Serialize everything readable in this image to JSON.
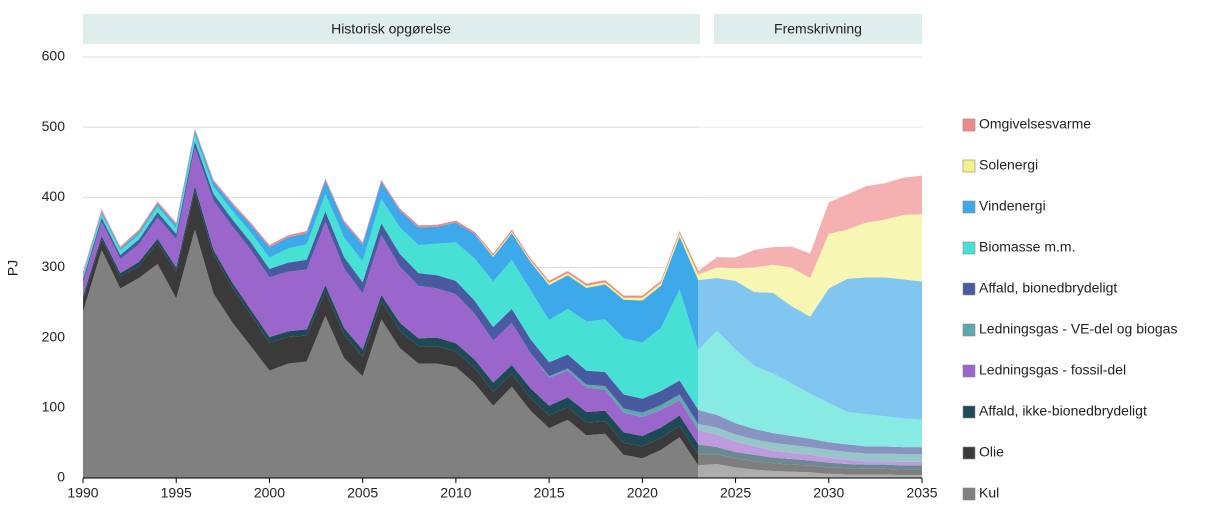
{
  "chart_data": {
    "type": "stacked-area",
    "headers": [
      "Historisk opgørelse",
      "Fremskrivning"
    ],
    "y_label": "PJ",
    "x": [
      1990,
      1991,
      1992,
      1993,
      1994,
      1995,
      1996,
      1997,
      1998,
      1999,
      2000,
      2001,
      2002,
      2003,
      2004,
      2005,
      2006,
      2007,
      2008,
      2009,
      2010,
      2011,
      2012,
      2013,
      2014,
      2015,
      2016,
      2017,
      2018,
      2019,
      2020,
      2021,
      2022,
      2023,
      2024,
      2025,
      2026,
      2027,
      2028,
      2029,
      2030,
      2031,
      2032,
      2033,
      2034,
      2035
    ],
    "xlim": [
      1990,
      2035
    ],
    "xticks": [
      1990,
      1995,
      2000,
      2005,
      2010,
      2015,
      2020,
      2025,
      2030,
      2035
    ],
    "ylim": [
      0,
      600
    ],
    "yticks": [
      0,
      100,
      200,
      300,
      400,
      500,
      600
    ],
    "grid": true,
    "legend": "right",
    "series": [
      {
        "name": "Kul",
        "color": "#808080",
        "values": [
          237,
          325,
          270,
          285,
          305,
          256,
          354,
          263,
          222,
          188,
          153,
          163,
          166,
          231,
          171,
          145,
          226,
          185,
          163,
          163,
          158,
          135,
          103,
          130,
          96,
          71,
          83,
          61,
          63,
          33,
          28,
          40,
          58,
          18,
          20,
          15,
          12,
          10,
          9,
          8,
          6,
          5,
          5,
          5,
          4,
          4
        ]
      },
      {
        "name": "Olie",
        "color": "#3a3a3a",
        "values": [
          17,
          15,
          17,
          17,
          30,
          38,
          55,
          55,
          50,
          45,
          40,
          38,
          37,
          35,
          33,
          28,
          25,
          25,
          25,
          25,
          22,
          22,
          20,
          18,
          18,
          18,
          18,
          18,
          18,
          17,
          17,
          17,
          16,
          16,
          14,
          13,
          12,
          11,
          10,
          10,
          9,
          9,
          8,
          8,
          8,
          8
        ]
      },
      {
        "name": "Affald, ikke-bionedbrydeligt",
        "color": "#1d4a55",
        "values": [
          5,
          5,
          5,
          6,
          6,
          6,
          7,
          7,
          7,
          7,
          8,
          8,
          9,
          9,
          10,
          10,
          10,
          11,
          11,
          12,
          12,
          12,
          13,
          13,
          14,
          14,
          14,
          15,
          15,
          15,
          15,
          15,
          15,
          14,
          10,
          9,
          9,
          8,
          8,
          7,
          7,
          6,
          6,
          6,
          6,
          6
        ]
      },
      {
        "name": "Ledningsgas - fossil-del",
        "color": "#9b66cc",
        "values": [
          20,
          20,
          20,
          25,
          30,
          40,
          55,
          70,
          80,
          85,
          85,
          85,
          85,
          90,
          85,
          80,
          85,
          80,
          75,
          70,
          70,
          65,
          60,
          60,
          50,
          40,
          38,
          35,
          30,
          28,
          27,
          25,
          22,
          20,
          18,
          15,
          12,
          10,
          9,
          8,
          7,
          6,
          5,
          5,
          5,
          5
        ]
      },
      {
        "name": "Ledningsgas - VE-del og biogas",
        "color": "#5fa8ad",
        "values": [
          0,
          0,
          0,
          0,
          0,
          0,
          0,
          0,
          0,
          0,
          0,
          0,
          0,
          0,
          0,
          0,
          0,
          0,
          0,
          0,
          0,
          0,
          0,
          0,
          0,
          2,
          3,
          4,
          5,
          6,
          6,
          7,
          8,
          9,
          10,
          10,
          10,
          11,
          11,
          11,
          11,
          11,
          11,
          11,
          11,
          11
        ]
      },
      {
        "name": "Affald, bionedbrydeligt",
        "color": "#4a5aa0",
        "values": [
          5,
          6,
          6,
          7,
          8,
          8,
          9,
          10,
          10,
          11,
          12,
          13,
          14,
          15,
          16,
          16,
          17,
          18,
          18,
          19,
          19,
          19,
          19,
          20,
          20,
          20,
          20,
          20,
          20,
          20,
          20,
          20,
          20,
          20,
          18,
          16,
          15,
          14,
          13,
          12,
          11,
          11,
          10,
          10,
          10,
          10
        ]
      },
      {
        "name": "Biomasse m.m.",
        "color": "#47e0d4",
        "values": [
          5,
          6,
          6,
          7,
          8,
          8,
          9,
          10,
          12,
          14,
          16,
          20,
          22,
          25,
          28,
          30,
          35,
          38,
          40,
          45,
          55,
          60,
          65,
          70,
          70,
          60,
          65,
          70,
          75,
          80,
          80,
          90,
          130,
          85,
          120,
          105,
          90,
          85,
          75,
          64,
          56,
          46,
          46,
          43,
          41,
          39
        ]
      },
      {
        "name": "Vindenergi",
        "color": "#3da8ea",
        "values": [
          2,
          3,
          3,
          4,
          4,
          5,
          6,
          7,
          9,
          11,
          15,
          16,
          16,
          19,
          21,
          24,
          24,
          24,
          25,
          24,
          28,
          35,
          35,
          38,
          40,
          50,
          48,
          48,
          50,
          55,
          60,
          60,
          75,
          100,
          75,
          98,
          105,
          115,
          110,
          110,
          163,
          190,
          195,
          198,
          198,
          197
        ]
      },
      {
        "name": "Solenergi",
        "color": "#f3f38a",
        "values": [
          0,
          0,
          0,
          0,
          0,
          0,
          0,
          0,
          0,
          0,
          0,
          0,
          0,
          0,
          0,
          0,
          0,
          0,
          0,
          0,
          0,
          0,
          2,
          2,
          2,
          3,
          3,
          3,
          3,
          3,
          4,
          4,
          5,
          8,
          15,
          18,
          35,
          40,
          55,
          55,
          78,
          70,
          78,
          82,
          92,
          96
        ]
      },
      {
        "name": "Omgivelsesvarme",
        "color": "#f08888",
        "values": [
          3,
          3,
          3,
          3,
          3,
          3,
          3,
          3,
          3,
          3,
          3,
          3,
          3,
          3,
          3,
          3,
          3,
          3,
          3,
          3,
          3,
          3,
          3,
          3,
          3,
          3,
          3,
          3,
          3,
          3,
          3,
          3,
          3,
          5,
          15,
          15,
          25,
          25,
          30,
          35,
          45,
          50,
          52,
          52,
          53,
          55
        ]
      }
    ]
  }
}
